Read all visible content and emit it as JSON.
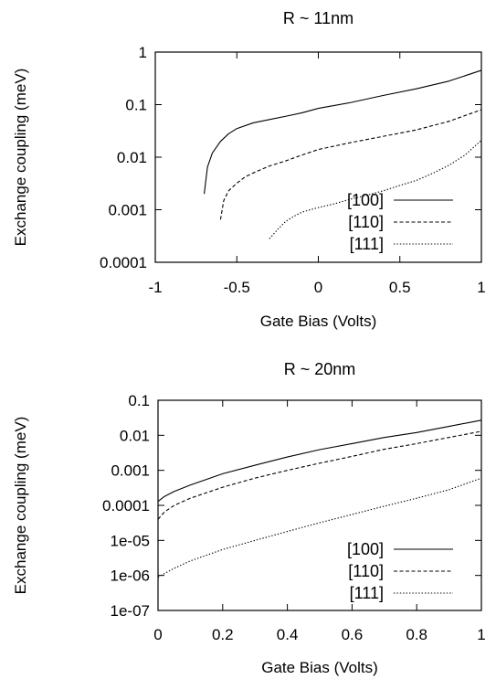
{
  "chart_data": [
    {
      "type": "line",
      "title": "R ~ 11nm",
      "xlabel": "Gate Bias (Volts)",
      "ylabel": "Exchange coupling (meV)",
      "xlim": [
        -1,
        1
      ],
      "ylim": [
        0.0001,
        1
      ],
      "yscale": "log",
      "x_ticks": [
        -1,
        -0.5,
        0,
        0.5,
        1
      ],
      "x_tick_labels": [
        "-1",
        "-0.5",
        "0",
        "0.5",
        "1"
      ],
      "y_ticks": [
        0.0001,
        0.001,
        0.01,
        0.1,
        1
      ],
      "y_tick_labels": [
        "0.0001",
        "0.001",
        "0.01",
        "0.1",
        "1"
      ],
      "grid": false,
      "legend_position": "bottom-right",
      "series": [
        {
          "name": "[100]",
          "line_style": "solid",
          "x": [
            -0.7,
            -0.68,
            -0.65,
            -0.6,
            -0.55,
            -0.5,
            -0.4,
            -0.3,
            -0.2,
            -0.1,
            0,
            0.2,
            0.4,
            0.6,
            0.8,
            1.0
          ],
          "y": [
            0.002,
            0.0065,
            0.012,
            0.02,
            0.028,
            0.035,
            0.045,
            0.052,
            0.06,
            0.07,
            0.085,
            0.11,
            0.15,
            0.2,
            0.28,
            0.45
          ]
        },
        {
          "name": "[110]",
          "line_style": "dashed",
          "x": [
            -0.6,
            -0.58,
            -0.55,
            -0.5,
            -0.45,
            -0.4,
            -0.3,
            -0.2,
            -0.1,
            0,
            0.2,
            0.4,
            0.6,
            0.8,
            1.0
          ],
          "y": [
            0.00065,
            0.0015,
            0.0023,
            0.0032,
            0.0042,
            0.005,
            0.0068,
            0.0085,
            0.011,
            0.014,
            0.019,
            0.025,
            0.033,
            0.048,
            0.08
          ]
        },
        {
          "name": "[111]",
          "line_style": "dotted",
          "x": [
            -0.3,
            -0.25,
            -0.2,
            -0.15,
            -0.1,
            -0.05,
            0,
            0.1,
            0.2,
            0.3,
            0.4,
            0.5,
            0.6,
            0.7,
            0.8,
            0.9,
            1.0
          ],
          "y": [
            0.00028,
            0.00042,
            0.0006,
            0.00075,
            0.0009,
            0.001,
            0.0011,
            0.0013,
            0.0016,
            0.0019,
            0.0023,
            0.0029,
            0.0036,
            0.0049,
            0.007,
            0.011,
            0.021
          ]
        }
      ]
    },
    {
      "type": "line",
      "title": "R ~ 20nm",
      "xlabel": "Gate Bias (Volts)",
      "ylabel": "Exchange coupling (meV)",
      "xlim": [
        0,
        1
      ],
      "ylim": [
        1e-07,
        0.1
      ],
      "yscale": "log",
      "x_ticks": [
        0,
        0.2,
        0.4,
        0.6,
        0.8,
        1
      ],
      "x_tick_labels": [
        "0",
        "0.2",
        "0.4",
        "0.6",
        "0.8",
        "1"
      ],
      "y_ticks": [
        1e-07,
        1e-06,
        1e-05,
        0.0001,
        0.001,
        0.01,
        0.1
      ],
      "y_tick_labels": [
        "1e-07",
        "1e-06",
        "1e-05",
        "0.0001",
        "0.001",
        "0.01",
        "0.1"
      ],
      "grid": false,
      "legend_position": "bottom-right",
      "series": [
        {
          "name": "[100]",
          "line_style": "solid",
          "x": [
            0,
            0.02,
            0.05,
            0.1,
            0.2,
            0.3,
            0.4,
            0.5,
            0.6,
            0.7,
            0.8,
            0.9,
            1.0
          ],
          "y": [
            0.00013,
            0.00018,
            0.00025,
            0.00038,
            0.0008,
            0.0014,
            0.0024,
            0.0039,
            0.0058,
            0.0087,
            0.012,
            0.018,
            0.027
          ]
        },
        {
          "name": "[110]",
          "line_style": "dashed",
          "x": [
            0,
            0.02,
            0.05,
            0.1,
            0.2,
            0.3,
            0.4,
            0.5,
            0.6,
            0.7,
            0.8,
            0.9,
            1.0
          ],
          "y": [
            4e-05,
            6.5e-05,
            0.0001,
            0.00016,
            0.00033,
            0.0006,
            0.001,
            0.0016,
            0.0025,
            0.004,
            0.0058,
            0.0087,
            0.013
          ]
        },
        {
          "name": "[111]",
          "line_style": "dotted",
          "x": [
            0,
            0.05,
            0.1,
            0.2,
            0.3,
            0.4,
            0.5,
            0.6,
            0.7,
            0.8,
            0.9,
            1.0
          ],
          "y": [
            9e-07,
            1.6e-06,
            2.6e-06,
            5.5e-06,
            1e-05,
            1.8e-05,
            3.2e-05,
            5.5e-05,
            9.5e-05,
            0.00016,
            0.00028,
            0.0006
          ]
        }
      ]
    }
  ]
}
